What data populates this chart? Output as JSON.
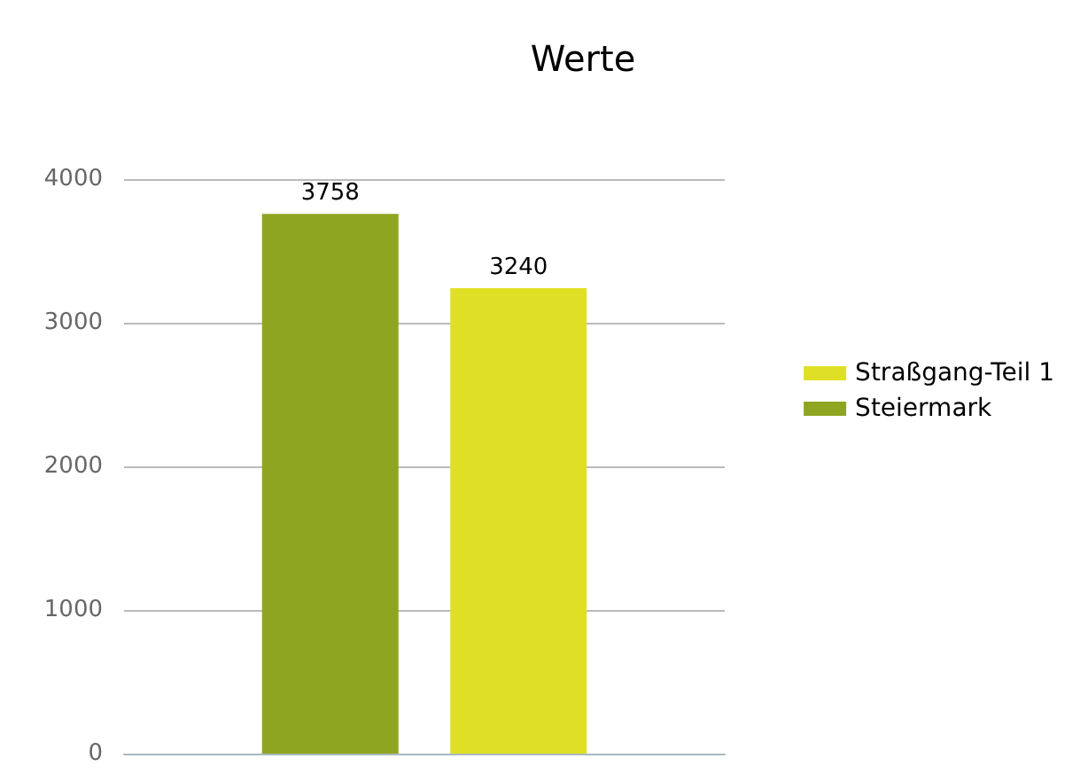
{
  "chart_data": {
    "type": "bar",
    "title": "Werte",
    "categories": [
      null
    ],
    "series": [
      {
        "name": "Steiermark",
        "color": "#8ea522",
        "values": [
          3758
        ]
      },
      {
        "name": "Straßgang-Teil 1",
        "color": "#dfe026",
        "values": [
          3240
        ]
      }
    ],
    "ylim": [
      0,
      4000
    ],
    "yticks": [
      0,
      1000,
      2000,
      3000,
      4000
    ],
    "grid": "y",
    "legend": "right",
    "data_labels": true
  }
}
